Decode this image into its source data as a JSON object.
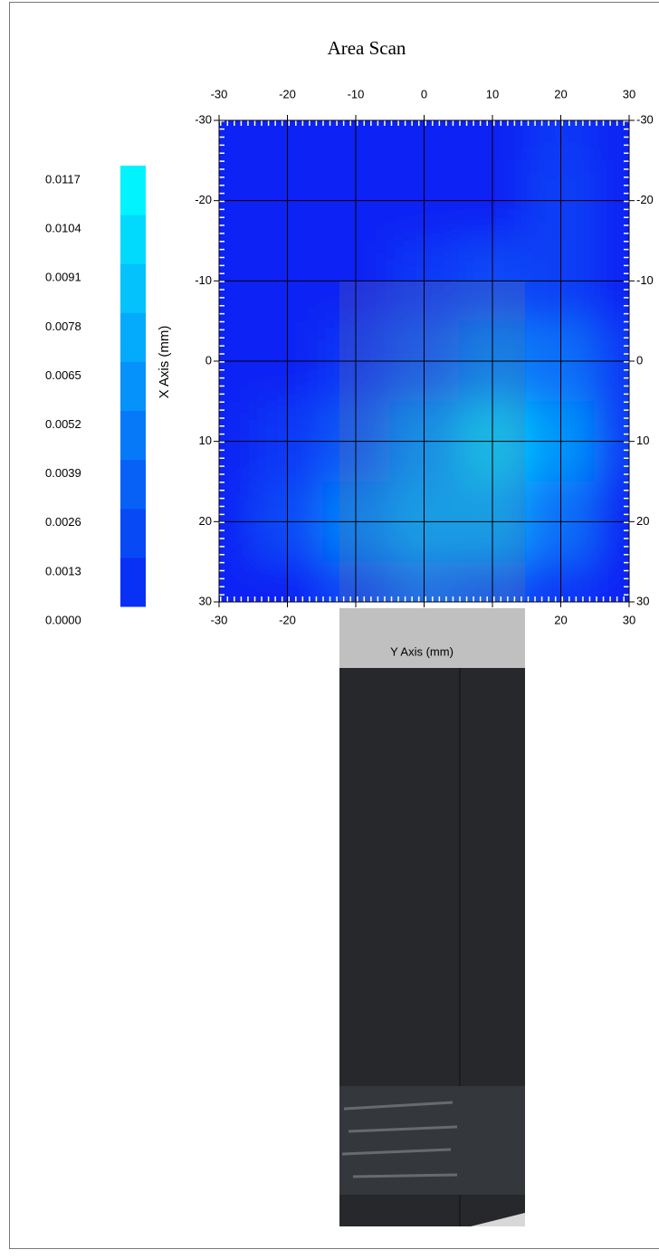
{
  "chart_data": {
    "type": "heatmap",
    "title": "Area Scan",
    "x_label": "Y Axis (mm)",
    "y_label": "X Axis (mm)",
    "x": [
      -30,
      -20,
      -10,
      0,
      10,
      20,
      30
    ],
    "y": [
      -30,
      -20,
      -10,
      0,
      10,
      20,
      30
    ],
    "z": [
      [
        0,
        0,
        0,
        0,
        0,
        0.001,
        0
      ],
      [
        0,
        0,
        0,
        0,
        0,
        0.0015,
        0
      ],
      [
        0,
        0,
        0,
        0.001,
        0.002,
        0.0015,
        0
      ],
      [
        0,
        0,
        0.001,
        0.003,
        0.005,
        0.004,
        0.001
      ],
      [
        0,
        0.001,
        0.003,
        0.006,
        0.009,
        0.006,
        0.001
      ],
      [
        0,
        0.002,
        0.005,
        0.007,
        0.007,
        0.004,
        0
      ],
      [
        0,
        0,
        0.002,
        0.004,
        0.003,
        0.001,
        0
      ]
    ],
    "xlim": [
      -30,
      30
    ],
    "xticks": [
      -30,
      -20,
      -10,
      0,
      10,
      20,
      30
    ],
    "ylim": [
      -30,
      30
    ],
    "yticks": [
      -30,
      -20,
      -10,
      0,
      10,
      20,
      30
    ],
    "y_inverted": true,
    "grid": true,
    "colormap": [
      "#0a24f4",
      "#00ffff"
    ],
    "colorbar_lim": [
      0,
      0.0117
    ],
    "colorbar_ticks": [
      {
        "value": 0,
        "label": "0.0000"
      },
      0.0013,
      0.0026,
      0.0039,
      0.0052,
      0.0065,
      0.0078,
      0.0091,
      0.0104,
      0.0117
    ]
  }
}
